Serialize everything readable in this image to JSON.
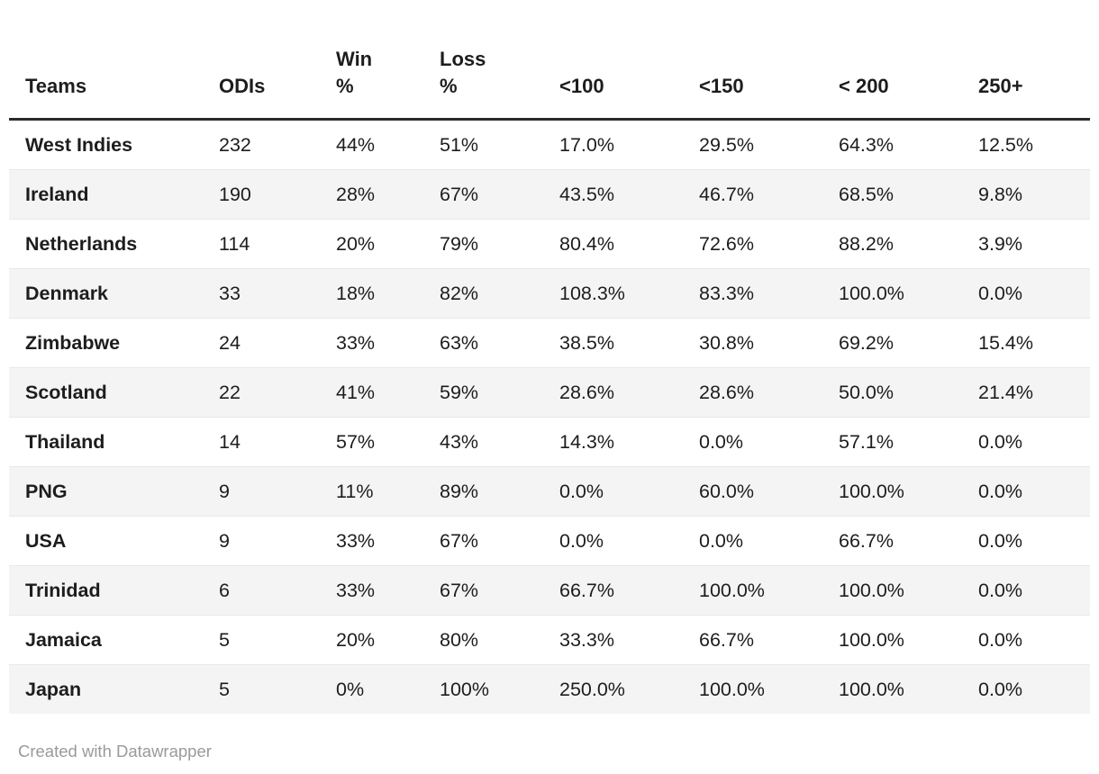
{
  "colors": {
    "header_rule": "#2b2b2b",
    "row_stripe": "#f4f4f4",
    "row_separator": "#e8e8e8",
    "body_text": "#1d1d1d",
    "credit_text": "#9a9a9a"
  },
  "table": {
    "columns": [
      {
        "key": "teams",
        "label": "Teams"
      },
      {
        "key": "odis",
        "label": "ODIs"
      },
      {
        "key": "win-pct",
        "label": "Win\n%"
      },
      {
        "key": "loss-pct",
        "label": "Loss\n%"
      },
      {
        "key": "lt-100",
        "label": "<100"
      },
      {
        "key": "lt-150",
        "label": "<150"
      },
      {
        "key": "lt-200",
        "label": "< 200"
      },
      {
        "key": "250-plus",
        "label": "250+"
      }
    ],
    "rows": [
      [
        "West Indies",
        "232",
        "44%",
        "51%",
        "17.0%",
        "29.5%",
        "64.3%",
        "12.5%"
      ],
      [
        "Ireland",
        "190",
        "28%",
        "67%",
        "43.5%",
        "46.7%",
        "68.5%",
        "9.8%"
      ],
      [
        "Netherlands",
        "114",
        "20%",
        "79%",
        "80.4%",
        "72.6%",
        "88.2%",
        "3.9%"
      ],
      [
        "Denmark",
        "33",
        "18%",
        "82%",
        "108.3%",
        "83.3%",
        "100.0%",
        "0.0%"
      ],
      [
        "Zimbabwe",
        "24",
        "33%",
        "63%",
        "38.5%",
        "30.8%",
        "69.2%",
        "15.4%"
      ],
      [
        "Scotland",
        "22",
        "41%",
        "59%",
        "28.6%",
        "28.6%",
        "50.0%",
        "21.4%"
      ],
      [
        "Thailand",
        "14",
        "57%",
        "43%",
        "14.3%",
        "0.0%",
        "57.1%",
        "0.0%"
      ],
      [
        "PNG",
        "9",
        "11%",
        "89%",
        "0.0%",
        "60.0%",
        "100.0%",
        "0.0%"
      ],
      [
        "USA",
        "9",
        "33%",
        "67%",
        "0.0%",
        "0.0%",
        "66.7%",
        "0.0%"
      ],
      [
        "Trinidad",
        "6",
        "33%",
        "67%",
        "66.7%",
        "100.0%",
        "100.0%",
        "0.0%"
      ],
      [
        "Jamaica",
        "5",
        "20%",
        "80%",
        "33.3%",
        "66.7%",
        "100.0%",
        "0.0%"
      ],
      [
        "Japan",
        "5",
        "0%",
        "100%",
        "250.0%",
        "100.0%",
        "100.0%",
        "0.0%"
      ]
    ]
  },
  "chart_data": {
    "type": "table",
    "columns": [
      "Teams",
      "ODIs",
      "Win %",
      "Loss %",
      "<100",
      "<150",
      "< 200",
      "250+"
    ],
    "rows": [
      [
        "West Indies",
        232,
        "44%",
        "51%",
        "17.0%",
        "29.5%",
        "64.3%",
        "12.5%"
      ],
      [
        "Ireland",
        190,
        "28%",
        "67%",
        "43.5%",
        "46.7%",
        "68.5%",
        "9.8%"
      ],
      [
        "Netherlands",
        114,
        "20%",
        "79%",
        "80.4%",
        "72.6%",
        "88.2%",
        "3.9%"
      ],
      [
        "Denmark",
        33,
        "18%",
        "82%",
        "108.3%",
        "83.3%",
        "100.0%",
        "0.0%"
      ],
      [
        "Zimbabwe",
        24,
        "33%",
        "63%",
        "38.5%",
        "30.8%",
        "69.2%",
        "15.4%"
      ],
      [
        "Scotland",
        22,
        "41%",
        "59%",
        "28.6%",
        "28.6%",
        "50.0%",
        "21.4%"
      ],
      [
        "Thailand",
        14,
        "57%",
        "43%",
        "14.3%",
        "0.0%",
        "57.1%",
        "0.0%"
      ],
      [
        "PNG",
        9,
        "11%",
        "89%",
        "0.0%",
        "60.0%",
        "100.0%",
        "0.0%"
      ],
      [
        "USA",
        9,
        "33%",
        "67%",
        "0.0%",
        "0.0%",
        "66.7%",
        "0.0%"
      ],
      [
        "Trinidad",
        6,
        "33%",
        "67%",
        "66.7%",
        "100.0%",
        "100.0%",
        "0.0%"
      ],
      [
        "Jamaica",
        5,
        "20%",
        "80%",
        "33.3%",
        "66.7%",
        "100.0%",
        "0.0%"
      ],
      [
        "Japan",
        5,
        "0%",
        "100%",
        "250.0%",
        "100.0%",
        "100.0%",
        "0.0%"
      ]
    ],
    "layout": {
      "striped_rows": true,
      "header_rule": true,
      "alignment": "left"
    }
  },
  "footer": {
    "credit": "Created with Datawrapper"
  }
}
